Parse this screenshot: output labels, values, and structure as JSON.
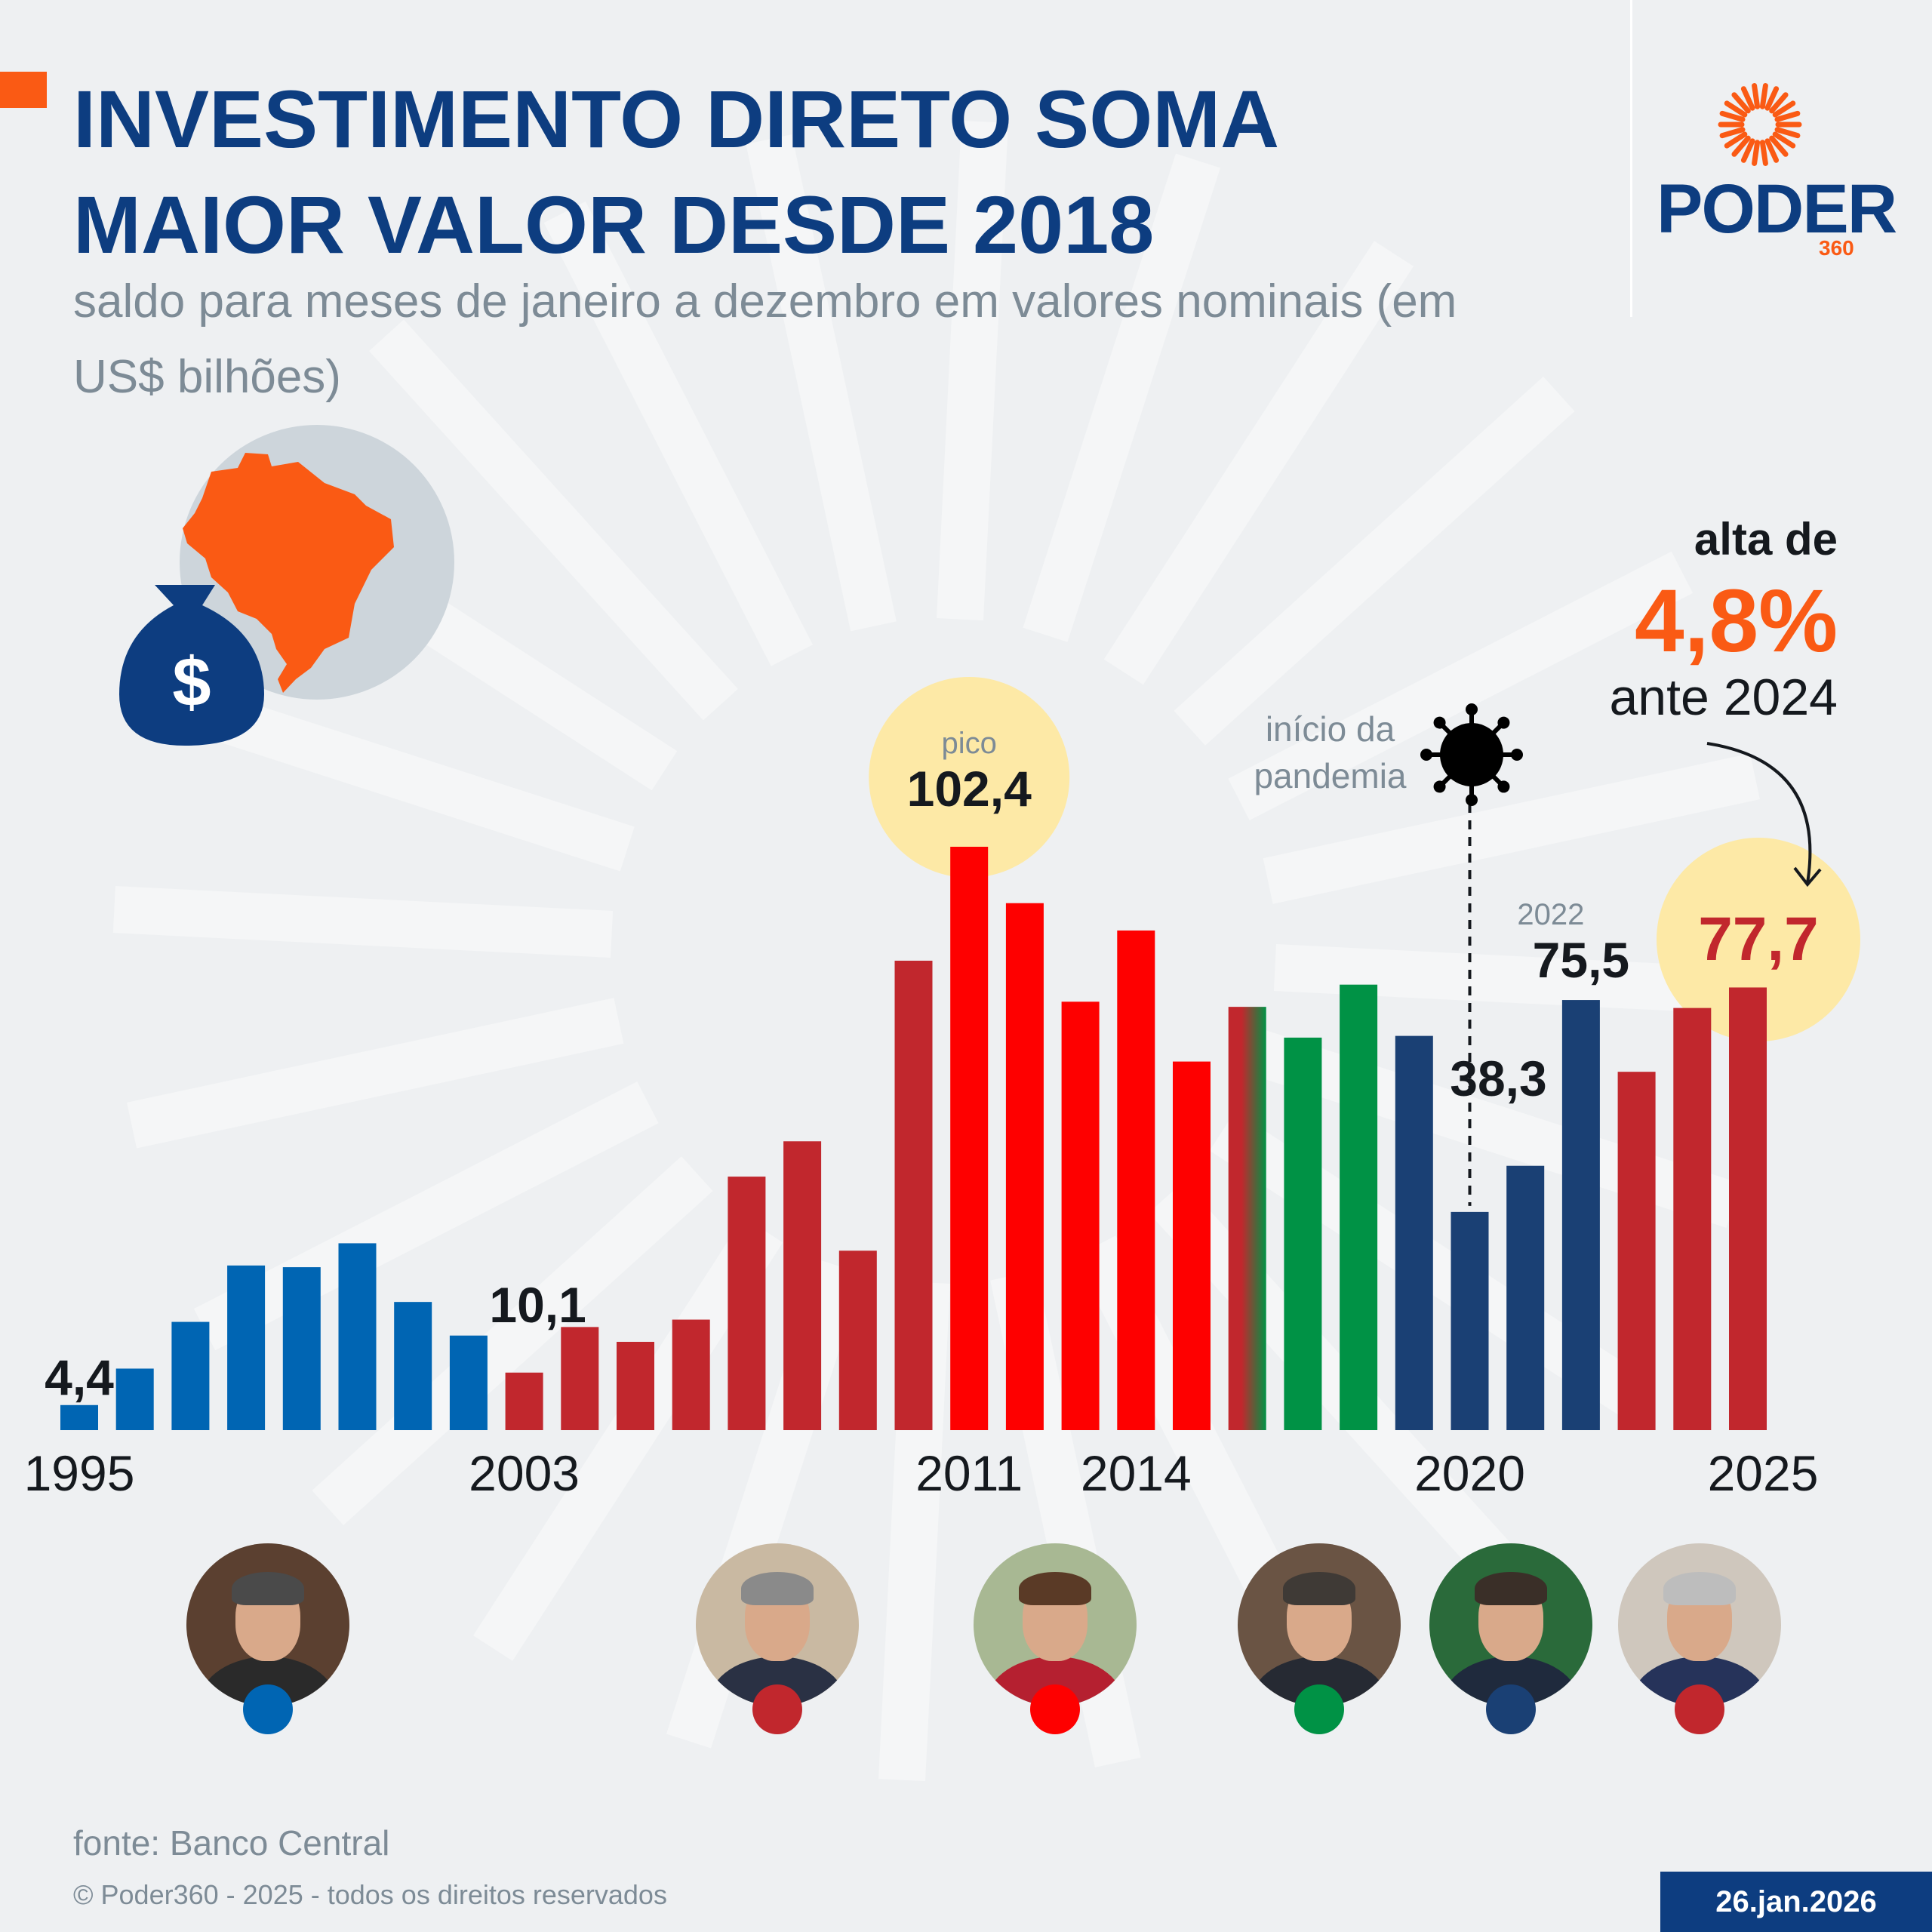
{
  "header": {
    "title_line1": "INVESTIMENTO DIRETO SOMA",
    "title_line2": "MAIOR VALOR DESDE 2018",
    "subtitle": "saldo para meses de janeiro a dezembro em valores nominais (em US$ bilhões)"
  },
  "logo": {
    "word": "PODER",
    "number": "360"
  },
  "highlight": {
    "prefix": "alta de",
    "value": "4,8%",
    "suffix": "ante 2024"
  },
  "annotations": {
    "peak_label": "pico",
    "peak_value": "102,4",
    "pandemic_line1": "início da",
    "pandemic_line2": "pandemia",
    "year_2022": "2022"
  },
  "chart_data": {
    "type": "bar",
    "title": "INVESTIMENTO DIRETO SOMA MAIOR VALOR DESDE 2018",
    "subtitle": "saldo para meses de janeiro a dezembro em valores nominais (em US$ bilhões)",
    "x": [
      1995,
      1996,
      1997,
      1998,
      1999,
      2000,
      2001,
      2002,
      2003,
      2004,
      2005,
      2006,
      2007,
      2008,
      2009,
      2010,
      2011,
      2012,
      2013,
      2014,
      2015,
      2016,
      2017,
      2018,
      2019,
      2020,
      2021,
      2022,
      2023,
      2024,
      2025
    ],
    "values": [
      4.4,
      10.8,
      19.0,
      28.9,
      28.6,
      32.8,
      22.5,
      16.6,
      10.1,
      18.1,
      15.5,
      19.4,
      44.5,
      50.7,
      31.5,
      82.4,
      102.4,
      92.5,
      75.2,
      87.7,
      64.7,
      74.3,
      68.9,
      78.2,
      69.2,
      38.3,
      46.4,
      75.5,
      62.9,
      74.1,
      77.7
    ],
    "colors": [
      "#0065b3",
      "#0065b3",
      "#0065b3",
      "#0065b3",
      "#0065b3",
      "#0065b3",
      "#0065b3",
      "#0065b3",
      "#c1272d",
      "#c1272d",
      "#c1272d",
      "#c1272d",
      "#c1272d",
      "#c1272d",
      "#c1272d",
      "#c1272d",
      "#fe0000",
      "#fe0000",
      "#fe0000",
      "#fe0000",
      "#fe0000",
      "#c1272d",
      "#009245",
      "#009245",
      "#1a4074",
      "#1a4074",
      "#1a4074",
      "#1a4074",
      "#c1272d",
      "#c1272d",
      "#c1272d"
    ],
    "labeled_values": [
      {
        "x": 1995,
        "label": "4,4"
      },
      {
        "x": 2003,
        "label": "10,1"
      },
      {
        "x": 2011,
        "label": "102,4"
      },
      {
        "x": 2020,
        "label": "38,3"
      },
      {
        "x": 2022,
        "label": "75,5"
      },
      {
        "x": 2025,
        "label": "77,7"
      }
    ],
    "xtick_labels": [
      {
        "x": 1995,
        "label": "1995"
      },
      {
        "x": 2003,
        "label": "2003"
      },
      {
        "x": 2011,
        "label": "2011"
      },
      {
        "x": 2014,
        "label": "2014"
      },
      {
        "x": 2020,
        "label": "2020"
      },
      {
        "x": 2025,
        "label": "2025"
      }
    ],
    "ylim": [
      0,
      102.4
    ],
    "grid": false
  },
  "presidents": [
    {
      "party_color": "#0065b3",
      "sky": "#5b4030",
      "suit": "#2a2a2a",
      "hair": "#4a4a4a"
    },
    {
      "party_color": "#c1272d",
      "sky": "#c9b9a2",
      "suit": "#2a3144",
      "hair": "#8a8a8a"
    },
    {
      "party_color": "#fe0000",
      "sky": "#a8b893",
      "suit": "#b52030",
      "hair": "#5a3a26"
    },
    {
      "party_color": "#009245",
      "sky": "#6a5444",
      "suit": "#262a33",
      "hair": "#3f3a36"
    },
    {
      "party_color": "#1a4074",
      "sky": "#2a6a3a",
      "suit": "#1f2a3d",
      "hair": "#3a2f28"
    },
    {
      "party_color": "#c1272d",
      "sky": "#cfc7bd",
      "suit": "#26335a",
      "hair": "#bdbdbd"
    }
  ],
  "footer": {
    "source": "fonte: Banco Central",
    "copyright": "© Poder360 - 2025 - todos os direitos reservados",
    "date": "26.jan.2026"
  }
}
